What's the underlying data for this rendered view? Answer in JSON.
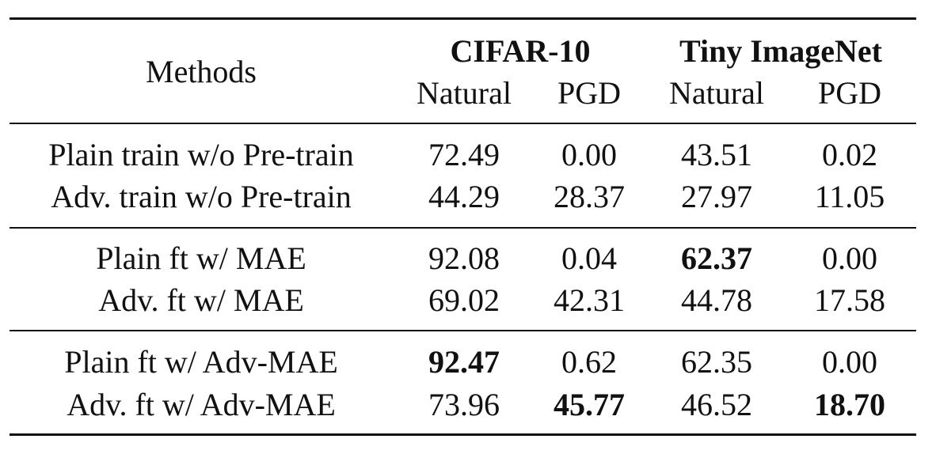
{
  "table": {
    "methods_header": "Methods",
    "datasets": [
      {
        "name": "CIFAR-10",
        "cols": [
          "Natural",
          "PGD"
        ]
      },
      {
        "name": "Tiny ImageNet",
        "cols": [
          "Natural",
          "PGD"
        ]
      }
    ],
    "groups": [
      {
        "rows": [
          {
            "method": "Plain train w/o Pre-train",
            "values": [
              "72.49",
              "0.00",
              "43.51",
              "0.02"
            ],
            "bold": [
              false,
              false,
              false,
              false
            ]
          },
          {
            "method": "Adv. train w/o Pre-train",
            "values": [
              "44.29",
              "28.37",
              "27.97",
              "11.05"
            ],
            "bold": [
              false,
              false,
              false,
              false
            ]
          }
        ]
      },
      {
        "rows": [
          {
            "method": "Plain ft w/ MAE",
            "values": [
              "92.08",
              "0.04",
              "62.37",
              "0.00"
            ],
            "bold": [
              false,
              false,
              true,
              false
            ]
          },
          {
            "method": "Adv. ft w/ MAE",
            "values": [
              "69.02",
              "42.31",
              "44.78",
              "17.58"
            ],
            "bold": [
              false,
              false,
              false,
              false
            ]
          }
        ]
      },
      {
        "rows": [
          {
            "method": "Plain ft w/ Adv-MAE",
            "values": [
              "92.47",
              "0.62",
              "62.35",
              "0.00"
            ],
            "bold": [
              true,
              false,
              false,
              false
            ]
          },
          {
            "method": "Adv. ft w/ Adv-MAE",
            "values": [
              "73.96",
              "45.77",
              "46.52",
              "18.70"
            ],
            "bold": [
              false,
              true,
              false,
              true
            ]
          }
        ]
      }
    ]
  }
}
